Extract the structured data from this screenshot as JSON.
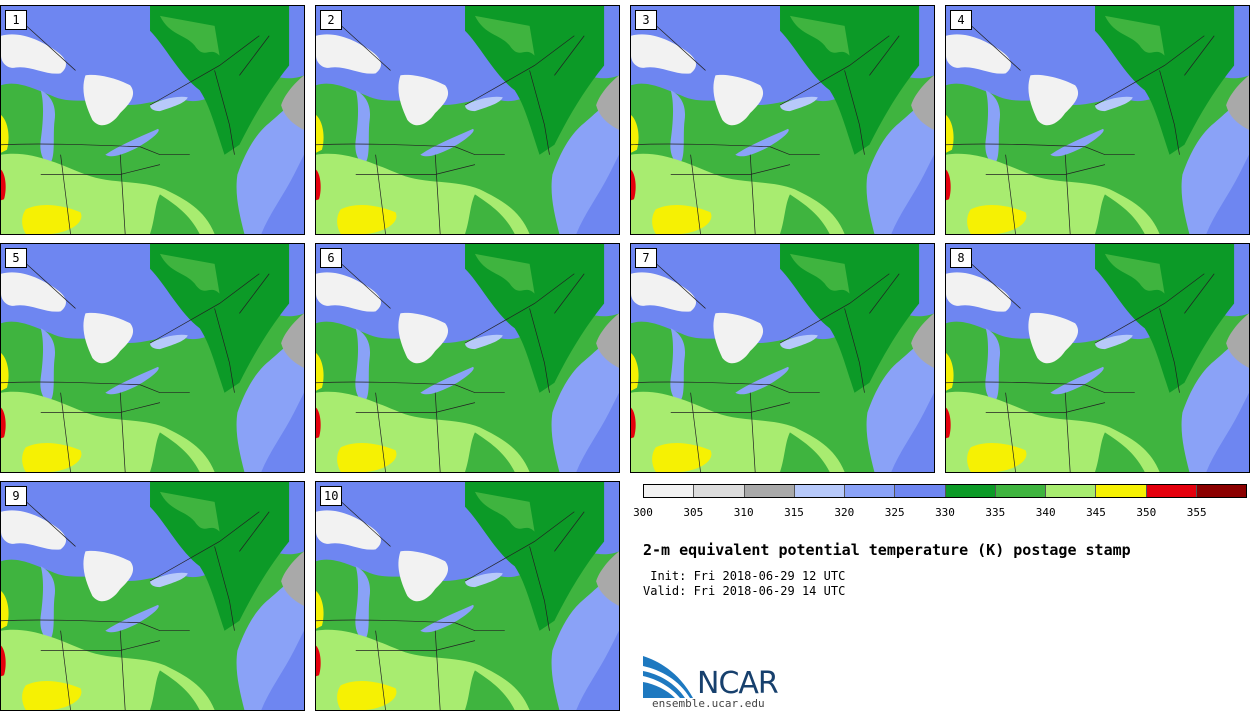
{
  "panels": [
    {
      "label": "1"
    },
    {
      "label": "2"
    },
    {
      "label": "3"
    },
    {
      "label": "4"
    },
    {
      "label": "5"
    },
    {
      "label": "6"
    },
    {
      "label": "7"
    },
    {
      "label": "8"
    },
    {
      "label": "9"
    },
    {
      "label": "10"
    }
  ],
  "colorbar": {
    "ticks": [
      "300",
      "305",
      "310",
      "315",
      "320",
      "325",
      "330",
      "335",
      "340",
      "345",
      "350",
      "355"
    ],
    "colors": [
      "#f2f2f2",
      "#dcdcdc",
      "#a9a9a9",
      "#b7c9fa",
      "#8aa2f7",
      "#6e86f1",
      "#0c9a27",
      "#3fb43f",
      "#a8ec70",
      "#f6f103",
      "#e4000d",
      "#8b0000"
    ]
  },
  "title": "2-m equivalent potential temperature (K) postage stamp",
  "init_line": " Init: Fri 2018-06-29 12 UTC",
  "valid_line": "Valid: Fri 2018-06-29 14 UTC",
  "logo": {
    "text": "NCAR",
    "site": "ensemble.ucar.edu"
  }
}
